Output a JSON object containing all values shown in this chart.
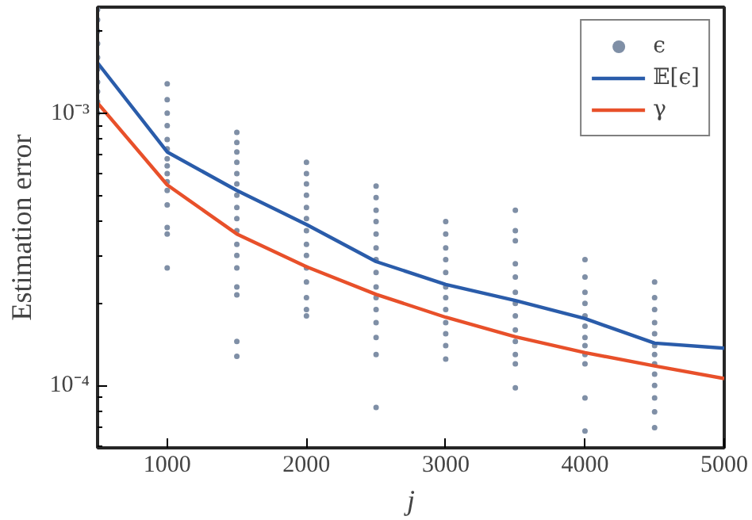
{
  "chart_data": {
    "type": "line",
    "xlabel": "j",
    "ylabel": "Estimation error",
    "xlim": [
      500,
      5000
    ],
    "xticks": [
      1000,
      2000,
      3000,
      4000,
      5000
    ],
    "ylim": [
      5.9e-05,
      0.00245
    ],
    "yticks": [
      {
        "value": 0.0001,
        "label": "10⁻⁴"
      },
      {
        "value": 0.001,
        "label": "10⁻³"
      }
    ],
    "log": "y",
    "grid": false,
    "legend": "top right",
    "series": [
      {
        "name": "ϵ",
        "type": "scatter",
        "marker": "circle",
        "color": "#7f8fa6",
        "x": [
          500,
          500,
          500,
          500,
          500,
          500,
          500,
          500,
          500,
          500,
          1000,
          1000,
          1000,
          1000,
          1000,
          1000,
          1000,
          1000,
          1000,
          1000,
          1000,
          1000,
          1000,
          1000,
          1000,
          1500,
          1500,
          1500,
          1500,
          1500,
          1500,
          1500,
          1500,
          1500,
          1500,
          1500,
          1500,
          1500,
          1500,
          1500,
          1500,
          1500,
          2000,
          2000,
          2000,
          2000,
          2000,
          2000,
          2000,
          2000,
          2000,
          2000,
          2000,
          2000,
          2000,
          2000,
          2500,
          2500,
          2500,
          2500,
          2500,
          2500,
          2500,
          2500,
          2500,
          2500,
          2500,
          2500,
          2500,
          2500,
          2500,
          3000,
          3000,
          3000,
          3000,
          3000,
          3000,
          3000,
          3000,
          3000,
          3000,
          3000,
          3000,
          3500,
          3500,
          3500,
          3500,
          3500,
          3500,
          3500,
          3500,
          3500,
          3500,
          3500,
          3500,
          3500,
          4000,
          4000,
          4000,
          4000,
          4000,
          4000,
          4000,
          4000,
          4000,
          4000,
          4000,
          4000,
          4500,
          4500,
          4500,
          4500,
          4500,
          4500,
          4500,
          4500,
          4500,
          4500,
          4500,
          4500,
          4500
        ],
        "values": [
          0.0024,
          0.0022,
          0.002,
          0.0018,
          0.0016,
          0.00145,
          0.0013,
          0.0012,
          0.0011,
          0.001,
          0.00128,
          0.00112,
          0.001,
          0.0009,
          0.0008,
          0.00074,
          0.00068,
          0.00064,
          0.0006,
          0.00056,
          0.00052,
          0.00046,
          0.00038,
          0.00036,
          0.00027,
          0.00085,
          0.00078,
          0.00072,
          0.00066,
          0.0006,
          0.00055,
          0.0005,
          0.00045,
          0.00041,
          0.00037,
          0.00033,
          0.0003,
          0.00027,
          0.00023,
          0.000215,
          0.000145,
          0.000128,
          0.00066,
          0.0006,
          0.00055,
          0.0005,
          0.00045,
          0.00041,
          0.00037,
          0.00033,
          0.0003,
          0.00027,
          0.00024,
          0.00021,
          0.00019,
          0.00018,
          0.00054,
          0.00049,
          0.00044,
          0.0004,
          0.00036,
          0.00032,
          0.00029,
          0.00026,
          0.00023,
          0.00021,
          0.00019,
          0.00017,
          0.00015,
          0.00013,
          8.3e-05,
          0.0004,
          0.00036,
          0.00032,
          0.00029,
          0.00026,
          0.00023,
          0.00021,
          0.00019,
          0.00017,
          0.000155,
          0.00014,
          0.000125,
          0.00044,
          0.00037,
          0.00034,
          0.00028,
          0.00025,
          0.00022,
          0.0002,
          0.00018,
          0.00016,
          0.000145,
          0.00013,
          0.00012,
          9.8e-05,
          0.00029,
          0.00025,
          0.00022,
          0.0002,
          0.00018,
          0.000165,
          0.00015,
          0.00014,
          0.00013,
          0.00012,
          9e-05,
          6.8e-05,
          0.00024,
          0.00021,
          0.00019,
          0.00017,
          0.000155,
          0.00014,
          0.00013,
          0.00012,
          0.00011,
          0.0001,
          9e-05,
          8e-05,
          7e-05
        ]
      },
      {
        "name": "𝔼[ϵ]",
        "color": "#2a5caa",
        "line_style": "solid",
        "x": [
          500,
          1000,
          1500,
          2000,
          2500,
          3000,
          3500,
          4000,
          4500,
          5000
        ],
        "values": [
          0.00153,
          0.00072,
          0.00052,
          0.00039,
          0.000285,
          0.000235,
          0.000205,
          0.000176,
          0.000143,
          0.000137
        ]
      },
      {
        "name": "γ",
        "color": "#e8502a",
        "line_style": "solid",
        "x": [
          500,
          1000,
          1500,
          2000,
          2500,
          3000,
          3500,
          4000,
          4500,
          5000
        ],
        "values": [
          0.00109,
          0.000545,
          0.00036,
          0.000273,
          0.000216,
          0.000178,
          0.000151,
          0.000132,
          0.000118,
          0.000106
        ]
      }
    ]
  }
}
